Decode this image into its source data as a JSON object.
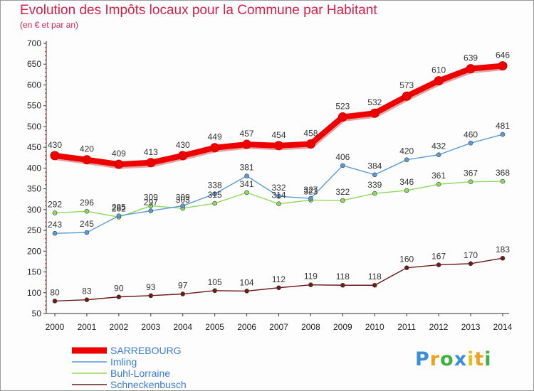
{
  "chart_data": {
    "type": "line",
    "title": "Evolution des Impôts locaux pour la Commune par Habitant",
    "subtitle": "(en € et par an)",
    "x": [
      "2000",
      "2001",
      "2002",
      "2003",
      "2004",
      "2005",
      "2006",
      "2007",
      "2008",
      "2009",
      "2010",
      "2011",
      "2012",
      "2013",
      "2014"
    ],
    "ylim": [
      50,
      700
    ],
    "yticks": [
      "50",
      "100",
      "150",
      "200",
      "250",
      "300",
      "350",
      "400",
      "450",
      "500",
      "550",
      "600",
      "650",
      "700"
    ],
    "grid": false,
    "legend_position": "bottom-left",
    "series": [
      {
        "name": "SARREBOURG",
        "color": "#ee0000",
        "values": [
          430,
          420,
          409,
          413,
          430,
          449,
          457,
          454,
          458,
          523,
          532,
          573,
          610,
          639,
          646
        ],
        "labels": [
          "430",
          "420",
          "409",
          "413",
          "430",
          "449",
          "457",
          "454",
          "458",
          "523",
          "532",
          "573",
          "610",
          "639",
          "646"
        ]
      },
      {
        "name": "Imling",
        "color": "#5b9bd5",
        "values": [
          243,
          245,
          285,
          297,
          309,
          338,
          381,
          332,
          327,
          406,
          384,
          420,
          432,
          460,
          481
        ],
        "labels": [
          "243",
          "245",
          "285",
          "297",
          "309",
          "338",
          "381",
          "332",
          "327",
          "406",
          "384",
          "420",
          "432",
          "460",
          "481"
        ]
      },
      {
        "name": "Buhl-Lorraine",
        "color": "#90d860",
        "values": [
          292,
          296,
          282,
          309,
          303,
          315,
          341,
          314,
          323,
          322,
          339,
          346,
          361,
          367,
          368
        ],
        "labels": [
          "292",
          "296",
          "282",
          "309",
          "303",
          "315",
          "341",
          "314",
          "323",
          "322",
          "339",
          "346",
          "361",
          "367",
          "368"
        ]
      },
      {
        "name": "Schneckenbusch",
        "color": "#6b1a1a",
        "values": [
          80,
          83,
          90,
          93,
          97,
          105,
          104,
          112,
          119,
          118,
          118,
          160,
          167,
          170,
          183
        ],
        "labels": [
          "80",
          "83",
          "90",
          "93",
          "97",
          "105",
          "104",
          "112",
          "119",
          "118",
          "118",
          "160",
          "167",
          "170",
          "183"
        ]
      }
    ]
  },
  "logo": {
    "letters": [
      "P",
      "r",
      "o",
      "x",
      "i",
      "t",
      "i"
    ],
    "colors": [
      "#3a8fd8",
      "#f0a020",
      "#40b040",
      "#3a8fd8",
      "#e8c020",
      "#f0a020",
      "#40b040"
    ]
  }
}
